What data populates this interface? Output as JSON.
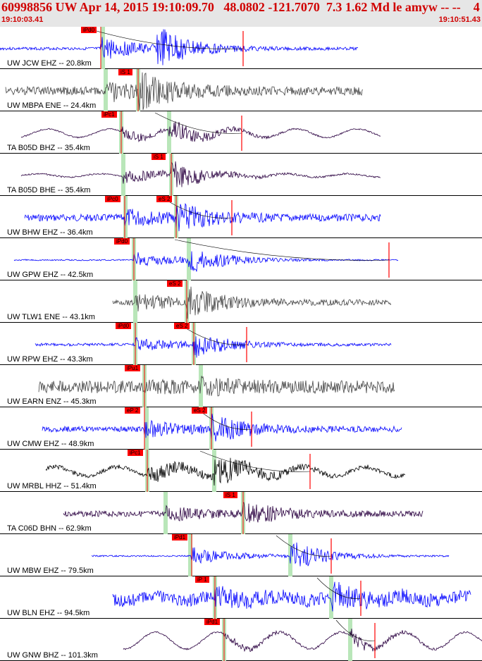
{
  "header": {
    "title": "60998856 UW Apr 14, 2015 19:10:09.70   48.0802 -121.7070  7.3 1.62 Md le amyw -- --    4",
    "time_start": "19:10:03.41",
    "time_end": "19:10:51.43"
  },
  "colors": {
    "header_bg": "#e6e6e6",
    "title": "#d00000",
    "pick": "#ff0000",
    "phase_band": "#b9e6b9"
  },
  "traces": [
    {
      "label": "UW JCW EHZ -- 20.8km",
      "color": "blue",
      "p_label": "iPd0",
      "p": 143,
      "s_label": "",
      "s": null,
      "mark": 345,
      "start": 0,
      "end": 508,
      "amp": 28,
      "noise": 2,
      "swell": 0,
      "ps": 146,
      "ss": null
    },
    {
      "label": "UW MBPA ENE -- 24.4km",
      "color": "gray",
      "p_label": "",
      "p": null,
      "s_label": "iS 1",
      "s": 196,
      "mark": null,
      "start": 8,
      "end": 515,
      "amp": 22,
      "noise": 6,
      "swell": 0,
      "ps": 150,
      "ss": 196
    },
    {
      "label": "TA B05D BHZ -- 35.4km",
      "color": "purple",
      "p_label": "iPc1",
      "p": 172,
      "s_label": "",
      "s": null,
      "mark": 343,
      "start": 30,
      "end": 540,
      "amp": 14,
      "noise": 1,
      "swell": 10,
      "ps": 172,
      "ss": 240
    },
    {
      "label": "TA B05D BHE -- 35.4km",
      "color": "purple",
      "p_label": "",
      "p": null,
      "s_label": "iS 1",
      "s": 243,
      "mark": null,
      "start": 30,
      "end": 540,
      "amp": 18,
      "noise": 1,
      "swell": 4,
      "ps": 175,
      "ss": 243
    },
    {
      "label": "UW BHW EHZ -- 36.4km",
      "color": "blue",
      "p_label": "iPc0",
      "p": 177,
      "s_label": "eS 2",
      "s": 250,
      "mark": 329,
      "start": 35,
      "end": 540,
      "amp": 18,
      "noise": 5,
      "swell": 0,
      "ps": 178,
      "ss": 250
    },
    {
      "label": "UW GPW EHZ -- 42.5km",
      "color": "blue",
      "p_label": "iPd0",
      "p": 190,
      "s_label": "",
      "s": null,
      "mark": 552,
      "start": 20,
      "end": 565,
      "amp": 20,
      "noise": 1,
      "swell": 0,
      "ps": 190,
      "ss": 268
    },
    {
      "label": "UW TLW1 ENE -- 43.1km",
      "color": "gray",
      "p_label": "",
      "p": null,
      "s_label": "eS 2",
      "s": 265,
      "mark": null,
      "start": 160,
      "end": 555,
      "amp": 18,
      "noise": 4,
      "swell": 0,
      "ps": 192,
      "ss": 265
    },
    {
      "label": "UW RPW EHZ -- 43.3km",
      "color": "blue",
      "p_label": "iPd0",
      "p": 192,
      "s_label": "eS 2",
      "s": 275,
      "mark": 350,
      "start": 50,
      "end": 555,
      "amp": 16,
      "noise": 2,
      "swell": 0,
      "ps": 192,
      "ss": 275
    },
    {
      "label": "UW EARN ENZ -- 45.3km",
      "color": "gray",
      "p_label": "iPu1",
      "p": 205,
      "s_label": "",
      "s": null,
      "mark": null,
      "start": 55,
      "end": 560,
      "amp": 6,
      "noise": 9,
      "swell": 0,
      "ps": 205,
      "ss": 285
    },
    {
      "label": "UW CMW EHZ -- 48.9km",
      "color": "blue",
      "p_label": "eP 2",
      "p": 205,
      "s_label": "eS 2",
      "s": 300,
      "mark": 357,
      "start": 60,
      "end": 570,
      "amp": 18,
      "noise": 4,
      "swell": 0,
      "ps": 208,
      "ss": 300
    },
    {
      "label": "UW MRBL HHZ -- 51.4km",
      "color": "black",
      "p_label": "iPc1",
      "p": 209,
      "s_label": "",
      "s": null,
      "mark": 440,
      "start": 65,
      "end": 575,
      "amp": 20,
      "noise": 3,
      "swell": 11,
      "ps": 209,
      "ss": 304
    },
    {
      "label": "TA C06D BHN -- 62.9km",
      "color": "purple",
      "p_label": "",
      "p": null,
      "s_label": "iS 1",
      "s": 345,
      "mark": null,
      "start": 90,
      "end": 600,
      "amp": 16,
      "noise": 4,
      "swell": 0,
      "ps": 235,
      "ss": 345
    },
    {
      "label": "UW MBW EHZ -- 79.5km",
      "color": "blue",
      "p_label": "iPd1",
      "p": 272,
      "s_label": "",
      "s": null,
      "mark": 470,
      "start": 130,
      "end": 637,
      "amp": 22,
      "noise": 1,
      "swell": 0,
      "ps": 270,
      "ss": 412
    },
    {
      "label": "UW BLN EHZ -- 94.5km",
      "color": "blue",
      "p_label": "iP 1",
      "p": 305,
      "s_label": "",
      "s": null,
      "mark": 512,
      "start": 160,
      "end": 668,
      "amp": 14,
      "noise": 9,
      "swell": 6,
      "ps": 305,
      "ss": 470
    },
    {
      "label": "UW GNW BHZ -- 101.3km",
      "color": "purple",
      "p_label": "iPd1",
      "p": 318,
      "s_label": "",
      "s": null,
      "mark": 532,
      "start": 175,
      "end": 684,
      "amp": 10,
      "noise": 1,
      "swell": 20,
      "ps": 318,
      "ss": 497
    }
  ]
}
